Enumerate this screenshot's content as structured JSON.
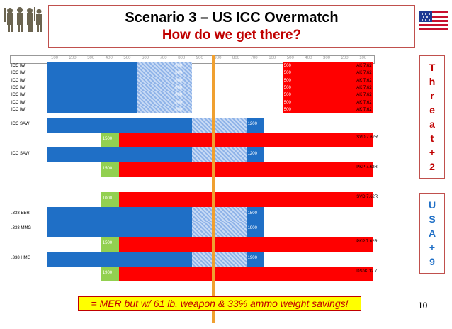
{
  "slide": {
    "title": "Scenario 3 – US ICC Overmatch",
    "subtitle": "How do we get there?",
    "page_number": "10",
    "annotation": "= MER but w/ 61 lb. weapon & 33% ammo weight savings!"
  },
  "side_panels": {
    "threat": [
      "T",
      "h",
      "r",
      "e",
      "a",
      "t",
      "+",
      "2"
    ],
    "usa": [
      "U",
      "S",
      "A",
      "+",
      "9"
    ]
  },
  "colors": {
    "us_blue": "#1f6fc6",
    "threat_red": "#ff0000",
    "label_yellow": "#ffff00",
    "overmatch_green": "#92d050",
    "hatch_blue": "#8fb3e8",
    "vertical_line": "#f0a030",
    "title_red": "#c00000"
  },
  "range_header": [
    "100",
    "200",
    "300",
    "400",
    "500",
    "600",
    "700",
    "800",
    "900",
    "900",
    "800",
    "700",
    "600",
    "500",
    "400",
    "300",
    "200",
    "100"
  ],
  "rows": [
    {
      "label": "ICC IW",
      "blue_end": "800",
      "red_start": "500",
      "threat": "AK 7.62"
    },
    {
      "label": "ICC IW",
      "blue_end": "800",
      "red_start": "500",
      "threat": "AK 7.62"
    },
    {
      "label": "ICC IW",
      "blue_end": "800",
      "red_start": "500",
      "threat": "AK 7.62"
    },
    {
      "label": "ICC IW",
      "blue_end": "800",
      "red_start": "500",
      "threat": "AK 7.62"
    },
    {
      "label": "ICC IW",
      "blue_end": "800",
      "red_start": "500",
      "threat": "AK 7.62"
    },
    {
      "label": "ICC IW",
      "blue_end": "800",
      "red_start": "500",
      "threat": "AK 7.62"
    },
    {
      "label": "ICC IW",
      "blue_end": "800",
      "red_start": "500",
      "threat": "AK 7.62"
    }
  ],
  "blocks": [
    {
      "label": "ICC SAW",
      "blue_val": "1200",
      "red_val": "1500",
      "threat": "SVD 7.62R"
    },
    {
      "label": "ICC SAW",
      "blue_val": "1200",
      "red_val": "1500",
      "threat": "PKP 7.62R"
    },
    {
      "label": "",
      "red_val": "1000",
      "threat": "SVD 7.62R"
    },
    {
      "label": ".338 EBR",
      "blue_val": "1500"
    },
    {
      "label": ".338 MMG",
      "blue_val": "1900",
      "red_val": "1500",
      "threat": "PKP 7.62R"
    },
    {
      "label": ".338 HMG",
      "blue_val": "1900",
      "red_val": "1900",
      "threat": "DShK 12.7"
    }
  ]
}
